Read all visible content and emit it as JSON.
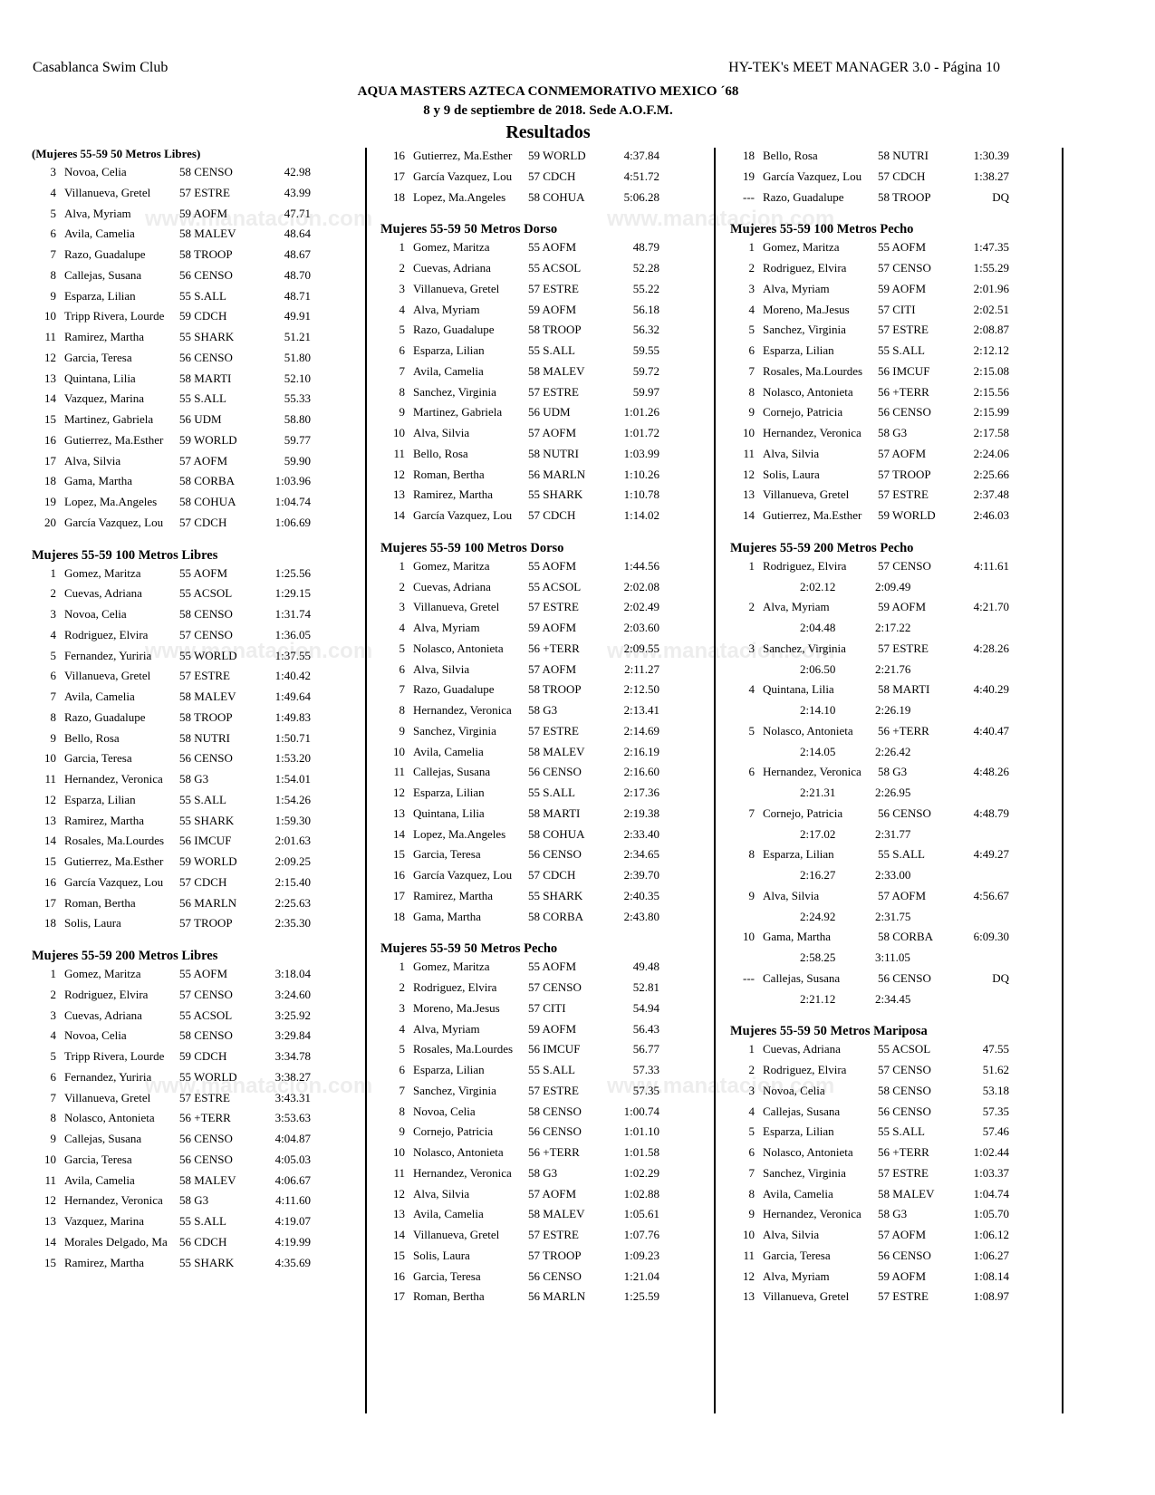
{
  "header": {
    "club": "Casablanca Swim Club",
    "software": "HY-TEK's MEET MANAGER 3.0 - Página 10",
    "meet_title": "AQUA MASTERS AZTECA CONMEMORATIVO MEXICO ´68",
    "dates": "8 y 9 de septiembre de 2018. Sede A.O.F.M.",
    "section": "Resultados"
  },
  "watermark": "www.manatacion.com",
  "columns": [
    [
      {
        "title": "(Mujeres 55-59 50 Metros Libres)",
        "small": true,
        "rows": [
          [
            "3",
            "Novoa, Celia",
            "58 CENSO",
            "42.98"
          ],
          [
            "4",
            "Villanueva, Gretel",
            "57 ESTRE",
            "43.99"
          ],
          [
            "5",
            "Alva, Myriam",
            "59 AOFM",
            "47.71"
          ],
          [
            "6",
            "Avila, Camelia",
            "58 MALEV",
            "48.64"
          ],
          [
            "7",
            "Razo, Guadalupe",
            "58 TROOP",
            "48.67"
          ],
          [
            "8",
            "Callejas, Susana",
            "56 CENSO",
            "48.70"
          ],
          [
            "9",
            "Esparza, Lilian",
            "55 S.ALL",
            "48.71"
          ],
          [
            "10",
            "Tripp Rivera, Lourde",
            "59 CDCH",
            "49.91"
          ],
          [
            "11",
            "Ramirez, Martha",
            "55 SHARK",
            "51.21"
          ],
          [
            "12",
            "Garcia, Teresa",
            "56 CENSO",
            "51.80"
          ],
          [
            "13",
            "Quintana, Lilia",
            "58 MARTI",
            "52.10"
          ],
          [
            "14",
            "Vazquez, Marina",
            "55 S.ALL",
            "55.33"
          ],
          [
            "15",
            "Martinez, Gabriela",
            "56 UDM",
            "58.80"
          ],
          [
            "16",
            "Gutierrez, Ma.Esther",
            "59 WORLD",
            "59.77"
          ],
          [
            "17",
            "Alva, Silvia",
            "57 AOFM",
            "59.90"
          ],
          [
            "18",
            "Gama, Martha",
            "58 CORBA",
            "1:03.96"
          ],
          [
            "19",
            "Lopez, Ma.Angeles",
            "58 COHUA",
            "1:04.74"
          ],
          [
            "20",
            "García Vazquez, Lou",
            "57 CDCH",
            "1:06.69"
          ]
        ]
      },
      {
        "title": "Mujeres 55-59 100 Metros Libres",
        "rows": [
          [
            "1",
            "Gomez, Maritza",
            "55 AOFM",
            "1:25.56"
          ],
          [
            "2",
            "Cuevas, Adriana",
            "55 ACSOL",
            "1:29.15"
          ],
          [
            "3",
            "Novoa, Celia",
            "58 CENSO",
            "1:31.74"
          ],
          [
            "4",
            "Rodriguez, Elvira",
            "57 CENSO",
            "1:36.05"
          ],
          [
            "5",
            "Fernandez, Yuriria",
            "55 WORLD",
            "1:37.55"
          ],
          [
            "6",
            "Villanueva, Gretel",
            "57 ESTRE",
            "1:40.42"
          ],
          [
            "7",
            "Avila, Camelia",
            "58 MALEV",
            "1:49.64"
          ],
          [
            "8",
            "Razo, Guadalupe",
            "58 TROOP",
            "1:49.83"
          ],
          [
            "9",
            "Bello, Rosa",
            "58 NUTRI",
            "1:50.71"
          ],
          [
            "10",
            "Garcia, Teresa",
            "56 CENSO",
            "1:53.20"
          ],
          [
            "11",
            "Hernandez, Veronica",
            "58 G3",
            "1:54.01"
          ],
          [
            "12",
            "Esparza, Lilian",
            "55 S.ALL",
            "1:54.26"
          ],
          [
            "13",
            "Ramirez, Martha",
            "55 SHARK",
            "1:59.30"
          ],
          [
            "14",
            "Rosales, Ma.Lourdes",
            "56 IMCUF",
            "2:01.63"
          ],
          [
            "15",
            "Gutierrez, Ma.Esther",
            "59 WORLD",
            "2:09.25"
          ],
          [
            "16",
            "García Vazquez, Lou",
            "57 CDCH",
            "2:15.40"
          ],
          [
            "17",
            "Roman, Bertha",
            "56 MARLN",
            "2:25.63"
          ],
          [
            "18",
            "Solis, Laura",
            "57 TROOP",
            "2:35.30"
          ]
        ]
      },
      {
        "title": "Mujeres 55-59 200 Metros Libres",
        "rows": [
          [
            "1",
            "Gomez, Maritza",
            "55 AOFM",
            "3:18.04"
          ],
          [
            "2",
            "Rodriguez, Elvira",
            "57 CENSO",
            "3:24.60"
          ],
          [
            "3",
            "Cuevas, Adriana",
            "55 ACSOL",
            "3:25.92"
          ],
          [
            "4",
            "Novoa, Celia",
            "58 CENSO",
            "3:29.84"
          ],
          [
            "5",
            "Tripp Rivera, Lourde",
            "59 CDCH",
            "3:34.78"
          ],
          [
            "6",
            "Fernandez, Yuriria",
            "55 WORLD",
            "3:38.27"
          ],
          [
            "7",
            "Villanueva, Gretel",
            "57 ESTRE",
            "3:43.31"
          ],
          [
            "8",
            "Nolasco, Antonieta",
            "56 +TERR",
            "3:53.63"
          ],
          [
            "9",
            "Callejas, Susana",
            "56 CENSO",
            "4:04.87"
          ],
          [
            "10",
            "Garcia, Teresa",
            "56 CENSO",
            "4:05.03"
          ],
          [
            "11",
            "Avila, Camelia",
            "58 MALEV",
            "4:06.67"
          ],
          [
            "12",
            "Hernandez, Veronica",
            "58 G3",
            "4:11.60"
          ],
          [
            "13",
            "Vazquez, Marina",
            "55 S.ALL",
            "4:19.07"
          ],
          [
            "14",
            "Morales Delgado, Ma",
            "56 CDCH",
            "4:19.99"
          ],
          [
            "15",
            "Ramirez, Martha",
            "55 SHARK",
            "4:35.69"
          ]
        ]
      }
    ],
    [
      {
        "title": "",
        "rows": [
          [
            "16",
            "Gutierrez, Ma.Esther",
            "59 WORLD",
            "4:37.84"
          ],
          [
            "17",
            "García Vazquez, Lou",
            "57 CDCH",
            "4:51.72"
          ],
          [
            "18",
            "Lopez, Ma.Angeles",
            "58 COHUA",
            "5:06.28"
          ]
        ]
      },
      {
        "title": "Mujeres 55-59 50 Metros Dorso",
        "rows": [
          [
            "1",
            "Gomez, Maritza",
            "55 AOFM",
            "48.79"
          ],
          [
            "2",
            "Cuevas, Adriana",
            "55 ACSOL",
            "52.28"
          ],
          [
            "3",
            "Villanueva, Gretel",
            "57 ESTRE",
            "55.22"
          ],
          [
            "4",
            "Alva, Myriam",
            "59 AOFM",
            "56.18"
          ],
          [
            "5",
            "Razo, Guadalupe",
            "58 TROOP",
            "56.32"
          ],
          [
            "6",
            "Esparza, Lilian",
            "55 S.ALL",
            "59.55"
          ],
          [
            "7",
            "Avila, Camelia",
            "58 MALEV",
            "59.72"
          ],
          [
            "8",
            "Sanchez, Virginia",
            "57 ESTRE",
            "59.97"
          ],
          [
            "9",
            "Martinez, Gabriela",
            "56 UDM",
            "1:01.26"
          ],
          [
            "10",
            "Alva, Silvia",
            "57 AOFM",
            "1:01.72"
          ],
          [
            "11",
            "Bello, Rosa",
            "58 NUTRI",
            "1:03.99"
          ],
          [
            "12",
            "Roman, Bertha",
            "56 MARLN",
            "1:10.26"
          ],
          [
            "13",
            "Ramirez, Martha",
            "55 SHARK",
            "1:10.78"
          ],
          [
            "14",
            "García Vazquez, Lou",
            "57 CDCH",
            "1:14.02"
          ]
        ]
      },
      {
        "title": "Mujeres 55-59 100 Metros Dorso",
        "rows": [
          [
            "1",
            "Gomez, Maritza",
            "55 AOFM",
            "1:44.56"
          ],
          [
            "2",
            "Cuevas, Adriana",
            "55 ACSOL",
            "2:02.08"
          ],
          [
            "3",
            "Villanueva, Gretel",
            "57 ESTRE",
            "2:02.49"
          ],
          [
            "4",
            "Alva, Myriam",
            "59 AOFM",
            "2:03.60"
          ],
          [
            "5",
            "Nolasco, Antonieta",
            "56 +TERR",
            "2:09.55"
          ],
          [
            "6",
            "Alva, Silvia",
            "57 AOFM",
            "2:11.27"
          ],
          [
            "7",
            "Razo, Guadalupe",
            "58 TROOP",
            "2:12.50"
          ],
          [
            "8",
            "Hernandez, Veronica",
            "58 G3",
            "2:13.41"
          ],
          [
            "9",
            "Sanchez, Virginia",
            "57 ESTRE",
            "2:14.69"
          ],
          [
            "10",
            "Avila, Camelia",
            "58 MALEV",
            "2:16.19"
          ],
          [
            "11",
            "Callejas, Susana",
            "56 CENSO",
            "2:16.60"
          ],
          [
            "12",
            "Esparza, Lilian",
            "55 S.ALL",
            "2:17.36"
          ],
          [
            "13",
            "Quintana, Lilia",
            "58 MARTI",
            "2:19.38"
          ],
          [
            "14",
            "Lopez, Ma.Angeles",
            "58 COHUA",
            "2:33.40"
          ],
          [
            "15",
            "Garcia, Teresa",
            "56 CENSO",
            "2:34.65"
          ],
          [
            "16",
            "García Vazquez, Lou",
            "57 CDCH",
            "2:39.70"
          ],
          [
            "17",
            "Ramirez, Martha",
            "55 SHARK",
            "2:40.35"
          ],
          [
            "18",
            "Gama, Martha",
            "58 CORBA",
            "2:43.80"
          ]
        ]
      },
      {
        "title": "Mujeres 55-59 50 Metros Pecho",
        "rows": [
          [
            "1",
            "Gomez, Maritza",
            "55 AOFM",
            "49.48"
          ],
          [
            "2",
            "Rodriguez, Elvira",
            "57 CENSO",
            "52.81"
          ],
          [
            "3",
            "Moreno, Ma.Jesus",
            "57 CITI",
            "54.94"
          ],
          [
            "4",
            "Alva, Myriam",
            "59 AOFM",
            "56.43"
          ],
          [
            "5",
            "Rosales, Ma.Lourdes",
            "56 IMCUF",
            "56.77"
          ],
          [
            "6",
            "Esparza, Lilian",
            "55 S.ALL",
            "57.33"
          ],
          [
            "7",
            "Sanchez, Virginia",
            "57 ESTRE",
            "57.35"
          ],
          [
            "8",
            "Novoa, Celia",
            "58 CENSO",
            "1:00.74"
          ],
          [
            "9",
            "Cornejo, Patricia",
            "56 CENSO",
            "1:01.10"
          ],
          [
            "10",
            "Nolasco, Antonieta",
            "56 +TERR",
            "1:01.58"
          ],
          [
            "11",
            "Hernandez, Veronica",
            "58 G3",
            "1:02.29"
          ],
          [
            "12",
            "Alva, Silvia",
            "57 AOFM",
            "1:02.88"
          ],
          [
            "13",
            "Avila, Camelia",
            "58 MALEV",
            "1:05.61"
          ],
          [
            "14",
            "Villanueva, Gretel",
            "57 ESTRE",
            "1:07.76"
          ],
          [
            "15",
            "Solis, Laura",
            "57 TROOP",
            "1:09.23"
          ],
          [
            "16",
            "Garcia, Teresa",
            "56 CENSO",
            "1:21.04"
          ],
          [
            "17",
            "Roman, Bertha",
            "56 MARLN",
            "1:25.59"
          ]
        ]
      }
    ],
    [
      {
        "title": "",
        "rows": [
          [
            "18",
            "Bello, Rosa",
            "58 NUTRI",
            "1:30.39"
          ],
          [
            "19",
            "García Vazquez, Lou",
            "57 CDCH",
            "1:38.27"
          ],
          [
            "---",
            "Razo, Guadalupe",
            "58 TROOP",
            "DQ"
          ]
        ]
      },
      {
        "title": "Mujeres 55-59 100 Metros Pecho",
        "rows": [
          [
            "1",
            "Gomez, Maritza",
            "55 AOFM",
            "1:47.35"
          ],
          [
            "2",
            "Rodriguez, Elvira",
            "57 CENSO",
            "1:55.29"
          ],
          [
            "3",
            "Alva, Myriam",
            "59 AOFM",
            "2:01.96"
          ],
          [
            "4",
            "Moreno, Ma.Jesus",
            "57 CITI",
            "2:02.51"
          ],
          [
            "5",
            "Sanchez, Virginia",
            "57 ESTRE",
            "2:08.87"
          ],
          [
            "6",
            "Esparza, Lilian",
            "55 S.ALL",
            "2:12.12"
          ],
          [
            "7",
            "Rosales, Ma.Lourdes",
            "56 IMCUF",
            "2:15.08"
          ],
          [
            "8",
            "Nolasco, Antonieta",
            "56 +TERR",
            "2:15.56"
          ],
          [
            "9",
            "Cornejo, Patricia",
            "56 CENSO",
            "2:15.99"
          ],
          [
            "10",
            "Hernandez, Veronica",
            "58 G3",
            "2:17.58"
          ],
          [
            "11",
            "Alva, Silvia",
            "57 AOFM",
            "2:24.06"
          ],
          [
            "12",
            "Solis, Laura",
            "57 TROOP",
            "2:25.66"
          ],
          [
            "13",
            "Villanueva, Gretel",
            "57 ESTRE",
            "2:37.48"
          ],
          [
            "14",
            "Gutierrez, Ma.Esther",
            "59 WORLD",
            "2:46.03"
          ]
        ]
      },
      {
        "title": "Mujeres 55-59 200 Metros Pecho",
        "rows": [
          [
            "1",
            "Rodriguez, Elvira",
            "57 CENSO",
            "4:11.61",
            [
              "2:02.12",
              "2:09.49"
            ]
          ],
          [
            "2",
            "Alva, Myriam",
            "59 AOFM",
            "4:21.70",
            [
              "2:04.48",
              "2:17.22"
            ]
          ],
          [
            "3",
            "Sanchez, Virginia",
            "57 ESTRE",
            "4:28.26",
            [
              "2:06.50",
              "2:21.76"
            ]
          ],
          [
            "4",
            "Quintana, Lilia",
            "58 MARTI",
            "4:40.29",
            [
              "2:14.10",
              "2:26.19"
            ]
          ],
          [
            "5",
            "Nolasco, Antonieta",
            "56 +TERR",
            "4:40.47",
            [
              "2:14.05",
              "2:26.42"
            ]
          ],
          [
            "6",
            "Hernandez, Veronica",
            "58 G3",
            "4:48.26",
            [
              "2:21.31",
              "2:26.95"
            ]
          ],
          [
            "7",
            "Cornejo, Patricia",
            "56 CENSO",
            "4:48.79",
            [
              "2:17.02",
              "2:31.77"
            ]
          ],
          [
            "8",
            "Esparza, Lilian",
            "55 S.ALL",
            "4:49.27",
            [
              "2:16.27",
              "2:33.00"
            ]
          ],
          [
            "9",
            "Alva, Silvia",
            "57 AOFM",
            "4:56.67",
            [
              "2:24.92",
              "2:31.75"
            ]
          ],
          [
            "10",
            "Gama, Martha",
            "58 CORBA",
            "6:09.30",
            [
              "2:58.25",
              "3:11.05"
            ]
          ],
          [
            "---",
            "Callejas, Susana",
            "56 CENSO",
            "DQ",
            [
              "2:21.12",
              "2:34.45"
            ]
          ]
        ]
      },
      {
        "title": "Mujeres 55-59 50 Metros Mariposa",
        "rows": [
          [
            "1",
            "Cuevas, Adriana",
            "55 ACSOL",
            "47.55"
          ],
          [
            "2",
            "Rodriguez, Elvira",
            "57 CENSO",
            "51.62"
          ],
          [
            "3",
            "Novoa, Celia",
            "58 CENSO",
            "53.18"
          ],
          [
            "4",
            "Callejas, Susana",
            "56 CENSO",
            "57.35"
          ],
          [
            "5",
            "Esparza, Lilian",
            "55 S.ALL",
            "57.46"
          ],
          [
            "6",
            "Nolasco, Antonieta",
            "56 +TERR",
            "1:02.44"
          ],
          [
            "7",
            "Sanchez, Virginia",
            "57 ESTRE",
            "1:03.37"
          ],
          [
            "8",
            "Avila, Camelia",
            "58 MALEV",
            "1:04.74"
          ],
          [
            "9",
            "Hernandez, Veronica",
            "58 G3",
            "1:05.70"
          ],
          [
            "10",
            "Alva, Silvia",
            "57 AOFM",
            "1:06.12"
          ],
          [
            "11",
            "Garcia, Teresa",
            "56 CENSO",
            "1:06.27"
          ],
          [
            "12",
            "Alva, Myriam",
            "59 AOFM",
            "1:08.14"
          ],
          [
            "13",
            "Villanueva, Gretel",
            "57 ESTRE",
            "1:08.97"
          ]
        ]
      }
    ]
  ]
}
